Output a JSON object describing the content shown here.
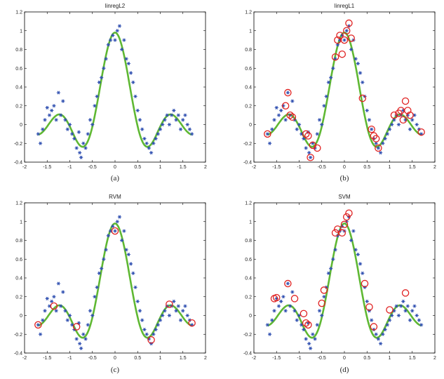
{
  "colors": {
    "fit": "#5fb833",
    "points": "#2f4fb0",
    "support": "#e02020"
  },
  "chart_data": [
    {
      "type": "scatter",
      "title": "linregL2",
      "caption": "(a)",
      "xlim": [
        -2,
        2
      ],
      "ylim": [
        -0.4,
        1.2
      ],
      "xticks": [
        "-2",
        "-1.5",
        "-1",
        "-0.5",
        "0",
        "0.5",
        "1",
        "1.5",
        "2"
      ],
      "yticks": [
        "-0.4",
        "-0.2",
        "0",
        "0.2",
        "0.4",
        "0.6",
        "0.8",
        "1",
        "1.2"
      ],
      "points": [
        [
          -1.7,
          -0.1
        ],
        [
          -1.65,
          -0.2
        ],
        [
          -1.6,
          -0.05
        ],
        [
          -1.55,
          0.05
        ],
        [
          -1.5,
          0.18
        ],
        [
          -1.45,
          0.1
        ],
        [
          -1.4,
          0.15
        ],
        [
          -1.35,
          0.2
        ],
        [
          -1.3,
          0.05
        ],
        [
          -1.25,
          0.34
        ],
        [
          -1.2,
          0.1
        ],
        [
          -1.15,
          0.25
        ],
        [
          -1.1,
          0.05
        ],
        [
          -1.05,
          -0.05
        ],
        [
          -1.0,
          0.0
        ],
        [
          -0.95,
          -0.1
        ],
        [
          -0.9,
          -0.15
        ],
        [
          -0.85,
          -0.25
        ],
        [
          -0.8,
          -0.08
        ],
        [
          -0.78,
          -0.3
        ],
        [
          -0.75,
          -0.35
        ],
        [
          -0.7,
          -0.2
        ],
        [
          -0.65,
          -0.25
        ],
        [
          -0.6,
          -0.1
        ],
        [
          -0.55,
          0.05
        ],
        [
          -0.5,
          0.0
        ],
        [
          -0.45,
          0.2
        ],
        [
          -0.4,
          0.3
        ],
        [
          -0.35,
          0.45
        ],
        [
          -0.3,
          0.5
        ],
        [
          -0.25,
          0.6
        ],
        [
          -0.2,
          0.7
        ],
        [
          -0.15,
          0.85
        ],
        [
          -0.1,
          0.9
        ],
        [
          -0.05,
          0.95
        ],
        [
          0.0,
          0.9
        ],
        [
          0.05,
          1.0
        ],
        [
          0.1,
          1.05
        ],
        [
          0.15,
          0.8
        ],
        [
          0.2,
          0.9
        ],
        [
          0.25,
          0.7
        ],
        [
          0.3,
          0.65
        ],
        [
          0.35,
          0.55
        ],
        [
          0.4,
          0.45
        ],
        [
          0.45,
          0.3
        ],
        [
          0.5,
          0.15
        ],
        [
          0.55,
          0.05
        ],
        [
          0.6,
          -0.05
        ],
        [
          0.65,
          -0.15
        ],
        [
          0.7,
          -0.2
        ],
        [
          0.75,
          -0.25
        ],
        [
          0.8,
          -0.3
        ],
        [
          0.85,
          -0.2
        ],
        [
          0.9,
          -0.15
        ],
        [
          0.95,
          -0.1
        ],
        [
          1.0,
          -0.05
        ],
        [
          1.05,
          0.0
        ],
        [
          1.1,
          0.05
        ],
        [
          1.15,
          0.1
        ],
        [
          1.2,
          0.0
        ],
        [
          1.25,
          0.1
        ],
        [
          1.3,
          0.15
        ],
        [
          1.35,
          0.05
        ],
        [
          1.4,
          0.1
        ],
        [
          1.45,
          -0.05
        ],
        [
          1.5,
          0.05
        ],
        [
          1.55,
          0.1
        ],
        [
          1.6,
          0.0
        ],
        [
          1.65,
          -0.05
        ],
        [
          1.7,
          -0.1
        ]
      ],
      "support": []
    },
    {
      "type": "scatter",
      "title": "linregL1",
      "caption": "(b)",
      "xlim": [
        -2,
        2
      ],
      "ylim": [
        -0.4,
        1.2
      ],
      "xticks": [
        "-2",
        "-1.5",
        "-1",
        "-0.5",
        "0",
        "0.5",
        "1",
        "1.5",
        "2"
      ],
      "yticks": [
        "-0.4",
        "-0.2",
        "0",
        "0.2",
        "0.4",
        "0.6",
        "0.8",
        "1",
        "1.2"
      ],
      "points": [
        [
          -1.7,
          -0.1
        ],
        [
          -1.65,
          -0.2
        ],
        [
          -1.6,
          -0.05
        ],
        [
          -1.55,
          0.05
        ],
        [
          -1.5,
          0.18
        ],
        [
          -1.45,
          0.1
        ],
        [
          -1.4,
          0.15
        ],
        [
          -1.35,
          0.2
        ],
        [
          -1.3,
          0.05
        ],
        [
          -1.25,
          0.34
        ],
        [
          -1.2,
          0.1
        ],
        [
          -1.15,
          0.25
        ],
        [
          -1.1,
          0.05
        ],
        [
          -1.05,
          -0.05
        ],
        [
          -1.0,
          0.0
        ],
        [
          -0.95,
          -0.1
        ],
        [
          -0.9,
          -0.15
        ],
        [
          -0.85,
          -0.25
        ],
        [
          -0.8,
          -0.08
        ],
        [
          -0.78,
          -0.3
        ],
        [
          -0.75,
          -0.35
        ],
        [
          -0.7,
          -0.2
        ],
        [
          -0.65,
          -0.25
        ],
        [
          -0.6,
          -0.1
        ],
        [
          -0.55,
          0.05
        ],
        [
          -0.5,
          0.0
        ],
        [
          -0.45,
          0.2
        ],
        [
          -0.4,
          0.3
        ],
        [
          -0.35,
          0.45
        ],
        [
          -0.3,
          0.5
        ],
        [
          -0.25,
          0.6
        ],
        [
          -0.2,
          0.7
        ],
        [
          -0.15,
          0.85
        ],
        [
          -0.1,
          0.9
        ],
        [
          -0.05,
          0.95
        ],
        [
          0.0,
          0.9
        ],
        [
          0.05,
          1.0
        ],
        [
          0.1,
          1.05
        ],
        [
          0.15,
          0.8
        ],
        [
          0.2,
          0.9
        ],
        [
          0.25,
          0.7
        ],
        [
          0.3,
          0.65
        ],
        [
          0.35,
          0.55
        ],
        [
          0.4,
          0.45
        ],
        [
          0.45,
          0.3
        ],
        [
          0.5,
          0.15
        ],
        [
          0.55,
          0.05
        ],
        [
          0.6,
          -0.05
        ],
        [
          0.65,
          -0.15
        ],
        [
          0.7,
          -0.2
        ],
        [
          0.75,
          -0.25
        ],
        [
          0.8,
          -0.3
        ],
        [
          0.85,
          -0.2
        ],
        [
          0.9,
          -0.15
        ],
        [
          0.95,
          -0.1
        ],
        [
          1.0,
          -0.05
        ],
        [
          1.05,
          0.0
        ],
        [
          1.1,
          0.05
        ],
        [
          1.15,
          0.1
        ],
        [
          1.2,
          0.0
        ],
        [
          1.25,
          0.1
        ],
        [
          1.3,
          0.15
        ],
        [
          1.35,
          0.05
        ],
        [
          1.4,
          0.1
        ],
        [
          1.45,
          -0.05
        ],
        [
          1.5,
          0.05
        ],
        [
          1.55,
          0.1
        ],
        [
          1.6,
          0.0
        ],
        [
          1.65,
          -0.05
        ],
        [
          1.7,
          -0.1
        ]
      ],
      "support": [
        [
          -1.7,
          -0.1
        ],
        [
          -1.3,
          0.2
        ],
        [
          -1.25,
          0.34
        ],
        [
          -1.2,
          0.1
        ],
        [
          -1.15,
          0.08
        ],
        [
          -0.85,
          -0.1
        ],
        [
          -0.8,
          -0.12
        ],
        [
          -0.75,
          -0.35
        ],
        [
          -0.7,
          -0.22
        ],
        [
          -0.6,
          -0.25
        ],
        [
          -0.2,
          0.72
        ],
        [
          -0.15,
          0.9
        ],
        [
          -0.1,
          0.95
        ],
        [
          -0.05,
          0.75
        ],
        [
          0.0,
          0.9
        ],
        [
          0.05,
          1.0
        ],
        [
          0.1,
          1.08
        ],
        [
          0.15,
          0.92
        ],
        [
          0.4,
          0.28
        ],
        [
          0.6,
          -0.05
        ],
        [
          0.65,
          -0.12
        ],
        [
          0.7,
          -0.15
        ],
        [
          0.75,
          -0.25
        ],
        [
          1.1,
          0.1
        ],
        [
          1.2,
          0.12
        ],
        [
          1.25,
          0.15
        ],
        [
          1.3,
          0.05
        ],
        [
          1.35,
          0.25
        ],
        [
          1.4,
          0.15
        ],
        [
          1.45,
          0.1
        ],
        [
          1.7,
          -0.08
        ]
      ]
    },
    {
      "type": "scatter",
      "title": "RVM",
      "caption": "(c)",
      "xlim": [
        -2,
        2
      ],
      "ylim": [
        -0.4,
        1.2
      ],
      "xticks": [
        "-2",
        "-1.5",
        "-1",
        "-0.5",
        "0",
        "0.5",
        "1",
        "1.5",
        "2"
      ],
      "yticks": [
        "-0.4",
        "-0.2",
        "0",
        "0.2",
        "0.4",
        "0.6",
        "0.8",
        "1",
        "1.2"
      ],
      "points": [
        [
          -1.7,
          -0.1
        ],
        [
          -1.65,
          -0.2
        ],
        [
          -1.6,
          -0.05
        ],
        [
          -1.55,
          0.05
        ],
        [
          -1.5,
          0.18
        ],
        [
          -1.45,
          0.1
        ],
        [
          -1.4,
          0.15
        ],
        [
          -1.35,
          0.2
        ],
        [
          -1.3,
          0.05
        ],
        [
          -1.25,
          0.34
        ],
        [
          -1.2,
          0.1
        ],
        [
          -1.15,
          0.25
        ],
        [
          -1.1,
          0.05
        ],
        [
          -1.05,
          -0.05
        ],
        [
          -1.0,
          0.0
        ],
        [
          -0.95,
          -0.1
        ],
        [
          -0.9,
          -0.15
        ],
        [
          -0.85,
          -0.25
        ],
        [
          -0.8,
          -0.08
        ],
        [
          -0.78,
          -0.3
        ],
        [
          -0.75,
          -0.35
        ],
        [
          -0.7,
          -0.2
        ],
        [
          -0.65,
          -0.25
        ],
        [
          -0.6,
          -0.1
        ],
        [
          -0.55,
          0.05
        ],
        [
          -0.5,
          0.0
        ],
        [
          -0.45,
          0.2
        ],
        [
          -0.4,
          0.3
        ],
        [
          -0.35,
          0.45
        ],
        [
          -0.3,
          0.5
        ],
        [
          -0.25,
          0.6
        ],
        [
          -0.2,
          0.7
        ],
        [
          -0.15,
          0.85
        ],
        [
          -0.1,
          0.9
        ],
        [
          -0.05,
          0.95
        ],
        [
          0.0,
          0.9
        ],
        [
          0.05,
          1.0
        ],
        [
          0.1,
          1.05
        ],
        [
          0.15,
          0.8
        ],
        [
          0.2,
          0.9
        ],
        [
          0.25,
          0.7
        ],
        [
          0.3,
          0.65
        ],
        [
          0.35,
          0.55
        ],
        [
          0.4,
          0.45
        ],
        [
          0.45,
          0.3
        ],
        [
          0.5,
          0.15
        ],
        [
          0.55,
          0.05
        ],
        [
          0.6,
          -0.05
        ],
        [
          0.65,
          -0.15
        ],
        [
          0.7,
          -0.2
        ],
        [
          0.75,
          -0.25
        ],
        [
          0.8,
          -0.3
        ],
        [
          0.85,
          -0.2
        ],
        [
          0.9,
          -0.15
        ],
        [
          0.95,
          -0.1
        ],
        [
          1.0,
          -0.05
        ],
        [
          1.05,
          0.0
        ],
        [
          1.1,
          0.05
        ],
        [
          1.15,
          0.1
        ],
        [
          1.2,
          0.0
        ],
        [
          1.25,
          0.1
        ],
        [
          1.3,
          0.15
        ],
        [
          1.35,
          0.05
        ],
        [
          1.4,
          0.1
        ],
        [
          1.45,
          -0.05
        ],
        [
          1.5,
          0.05
        ],
        [
          1.55,
          0.1
        ],
        [
          1.6,
          0.0
        ],
        [
          1.65,
          -0.05
        ],
        [
          1.7,
          -0.1
        ]
      ],
      "support": [
        [
          -1.7,
          -0.1
        ],
        [
          -1.35,
          0.1
        ],
        [
          -0.85,
          -0.12
        ],
        [
          0.0,
          0.9
        ],
        [
          0.8,
          -0.26
        ],
        [
          1.2,
          0.12
        ],
        [
          1.7,
          -0.08
        ]
      ]
    },
    {
      "type": "scatter",
      "title": "SVM",
      "caption": "(d)",
      "xlim": [
        -2,
        2
      ],
      "ylim": [
        -0.4,
        1.2
      ],
      "xticks": [
        "-2",
        "-1.5",
        "-1",
        "-0.5",
        "0",
        "0.5",
        "1",
        "1.5",
        "2"
      ],
      "yticks": [
        "-0.4",
        "-0.2",
        "0",
        "0.2",
        "0.4",
        "0.6",
        "0.8",
        "1",
        "1.2"
      ],
      "points": [
        [
          -1.7,
          -0.1
        ],
        [
          -1.65,
          -0.2
        ],
        [
          -1.6,
          -0.05
        ],
        [
          -1.55,
          0.05
        ],
        [
          -1.5,
          0.18
        ],
        [
          -1.45,
          0.1
        ],
        [
          -1.4,
          0.15
        ],
        [
          -1.35,
          0.2
        ],
        [
          -1.3,
          0.05
        ],
        [
          -1.25,
          0.34
        ],
        [
          -1.2,
          0.1
        ],
        [
          -1.15,
          0.25
        ],
        [
          -1.1,
          0.05
        ],
        [
          -1.05,
          -0.05
        ],
        [
          -1.0,
          0.0
        ],
        [
          -0.95,
          -0.1
        ],
        [
          -0.9,
          -0.15
        ],
        [
          -0.85,
          -0.25
        ],
        [
          -0.8,
          -0.08
        ],
        [
          -0.78,
          -0.3
        ],
        [
          -0.75,
          -0.35
        ],
        [
          -0.7,
          -0.2
        ],
        [
          -0.65,
          -0.25
        ],
        [
          -0.6,
          -0.1
        ],
        [
          -0.55,
          0.05
        ],
        [
          -0.5,
          0.0
        ],
        [
          -0.45,
          0.2
        ],
        [
          -0.4,
          0.3
        ],
        [
          -0.35,
          0.45
        ],
        [
          -0.3,
          0.5
        ],
        [
          -0.25,
          0.6
        ],
        [
          -0.2,
          0.7
        ],
        [
          -0.15,
          0.85
        ],
        [
          -0.1,
          0.9
        ],
        [
          -0.05,
          0.95
        ],
        [
          0.0,
          0.9
        ],
        [
          0.05,
          1.0
        ],
        [
          0.1,
          1.05
        ],
        [
          0.15,
          0.8
        ],
        [
          0.2,
          0.9
        ],
        [
          0.25,
          0.7
        ],
        [
          0.3,
          0.65
        ],
        [
          0.35,
          0.55
        ],
        [
          0.4,
          0.45
        ],
        [
          0.45,
          0.3
        ],
        [
          0.5,
          0.15
        ],
        [
          0.55,
          0.05
        ],
        [
          0.6,
          -0.05
        ],
        [
          0.65,
          -0.15
        ],
        [
          0.7,
          -0.2
        ],
        [
          0.75,
          -0.25
        ],
        [
          0.8,
          -0.3
        ],
        [
          0.85,
          -0.2
        ],
        [
          0.9,
          -0.15
        ],
        [
          0.95,
          -0.1
        ],
        [
          1.0,
          -0.05
        ],
        [
          1.05,
          0.0
        ],
        [
          1.1,
          0.05
        ],
        [
          1.15,
          0.1
        ],
        [
          1.2,
          0.0
        ],
        [
          1.25,
          0.1
        ],
        [
          1.3,
          0.15
        ],
        [
          1.35,
          0.05
        ],
        [
          1.4,
          0.1
        ],
        [
          1.45,
          -0.05
        ],
        [
          1.5,
          0.05
        ],
        [
          1.55,
          0.1
        ],
        [
          1.6,
          0.0
        ],
        [
          1.65,
          -0.05
        ],
        [
          1.7,
          -0.1
        ]
      ],
      "support": [
        [
          -1.55,
          0.18
        ],
        [
          -1.5,
          0.19
        ],
        [
          -1.25,
          0.34
        ],
        [
          -1.1,
          0.18
        ],
        [
          -0.9,
          0.02
        ],
        [
          -0.85,
          -0.08
        ],
        [
          -0.8,
          -0.1
        ],
        [
          -0.5,
          0.13
        ],
        [
          -0.45,
          0.27
        ],
        [
          -0.2,
          0.88
        ],
        [
          -0.15,
          0.92
        ],
        [
          -0.05,
          0.88
        ],
        [
          0.0,
          0.97
        ],
        [
          0.05,
          1.05
        ],
        [
          0.1,
          1.09
        ],
        [
          0.45,
          0.34
        ],
        [
          0.55,
          0.09
        ],
        [
          0.65,
          -0.12
        ],
        [
          1.0,
          0.06
        ],
        [
          1.35,
          0.24
        ]
      ]
    }
  ]
}
